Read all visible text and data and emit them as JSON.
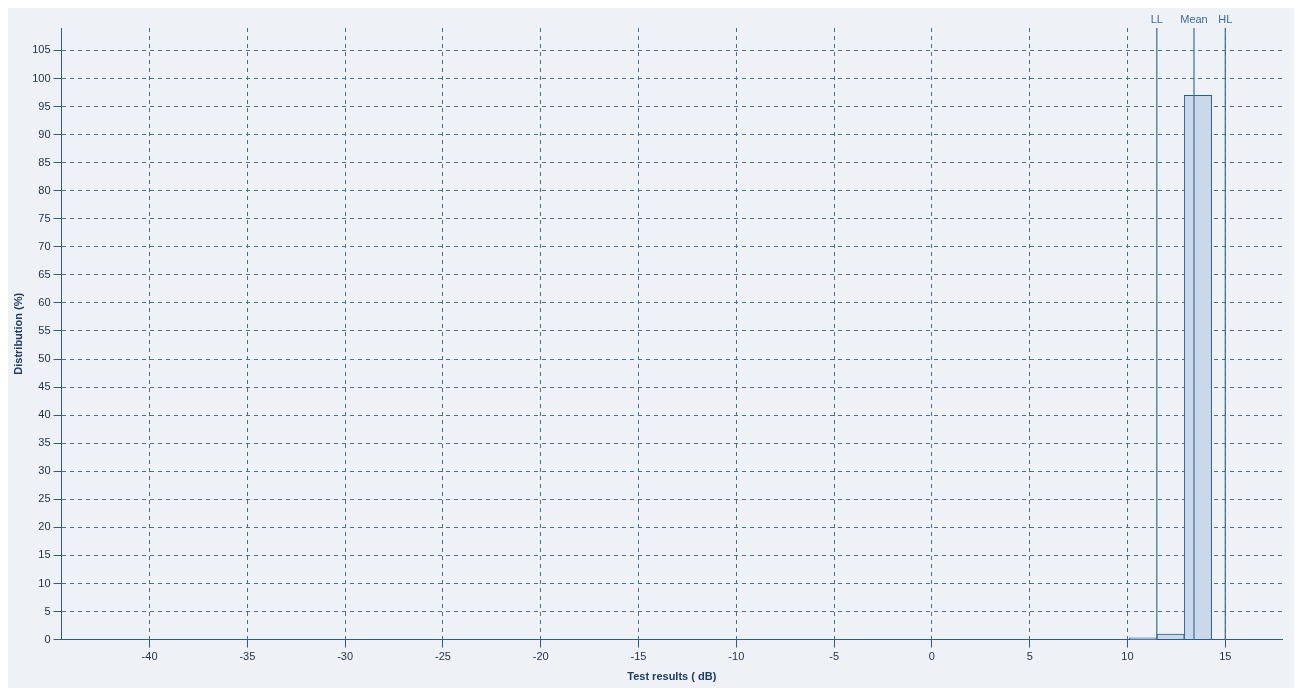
{
  "chart_data": {
    "type": "histogram",
    "xlabel": "Test results ( dB)",
    "ylabel": "Distribution (%)",
    "color": "#c9d9ea",
    "bins": [
      -41.7,
      -40.3,
      -38.9,
      -37.5,
      -36.1,
      -34.7,
      -33.3,
      -31.9,
      -30.5,
      -29.1,
      -27.7,
      -26.3,
      -24.9,
      -23.5,
      -22.1,
      -20.7,
      -19.3,
      -17.9,
      -16.5,
      -15.1,
      -13.7,
      -12.3,
      -10.9,
      -9.5,
      -8.1,
      -6.7,
      -5.3,
      -3.9,
      -2.5,
      -1.1,
      0.3,
      1.7,
      3.1,
      4.5,
      5.9,
      7.3,
      8.7,
      10.1,
      11.5,
      12.9,
      14.3
    ],
    "values": [
      0,
      0,
      0,
      0,
      0,
      0,
      0,
      0,
      0,
      0,
      0,
      0,
      0,
      0,
      0,
      0,
      0,
      0,
      0,
      0,
      0,
      0,
      0,
      0,
      0,
      0,
      0,
      0,
      0,
      0,
      0,
      0,
      0,
      0,
      0,
      0,
      0,
      0.3,
      1,
      97
    ],
    "xlim": [
      -44.5,
      17.9
    ],
    "xticks": [
      -40,
      -35,
      -30,
      -25,
      -20,
      -15,
      -10,
      -5,
      0,
      5,
      10,
      15
    ],
    "ylim": [
      0,
      109
    ],
    "yticks": [
      0,
      5,
      10,
      15,
      20,
      25,
      30,
      35,
      40,
      45,
      50,
      55,
      60,
      65,
      70,
      75,
      80,
      85,
      90,
      95,
      100,
      105
    ],
    "grid": true,
    "line_style": "dashed",
    "legend": false,
    "ref_lines": [
      {
        "axis": "x",
        "value": 11.5,
        "label": "LL",
        "color": "#3f6a9a"
      },
      {
        "axis": "x",
        "value": 13.4,
        "label": "Mean",
        "color": "#3f6a9a"
      },
      {
        "axis": "x",
        "value": 15,
        "label": "HL",
        "color": "#3f6a9a"
      }
    ]
  }
}
